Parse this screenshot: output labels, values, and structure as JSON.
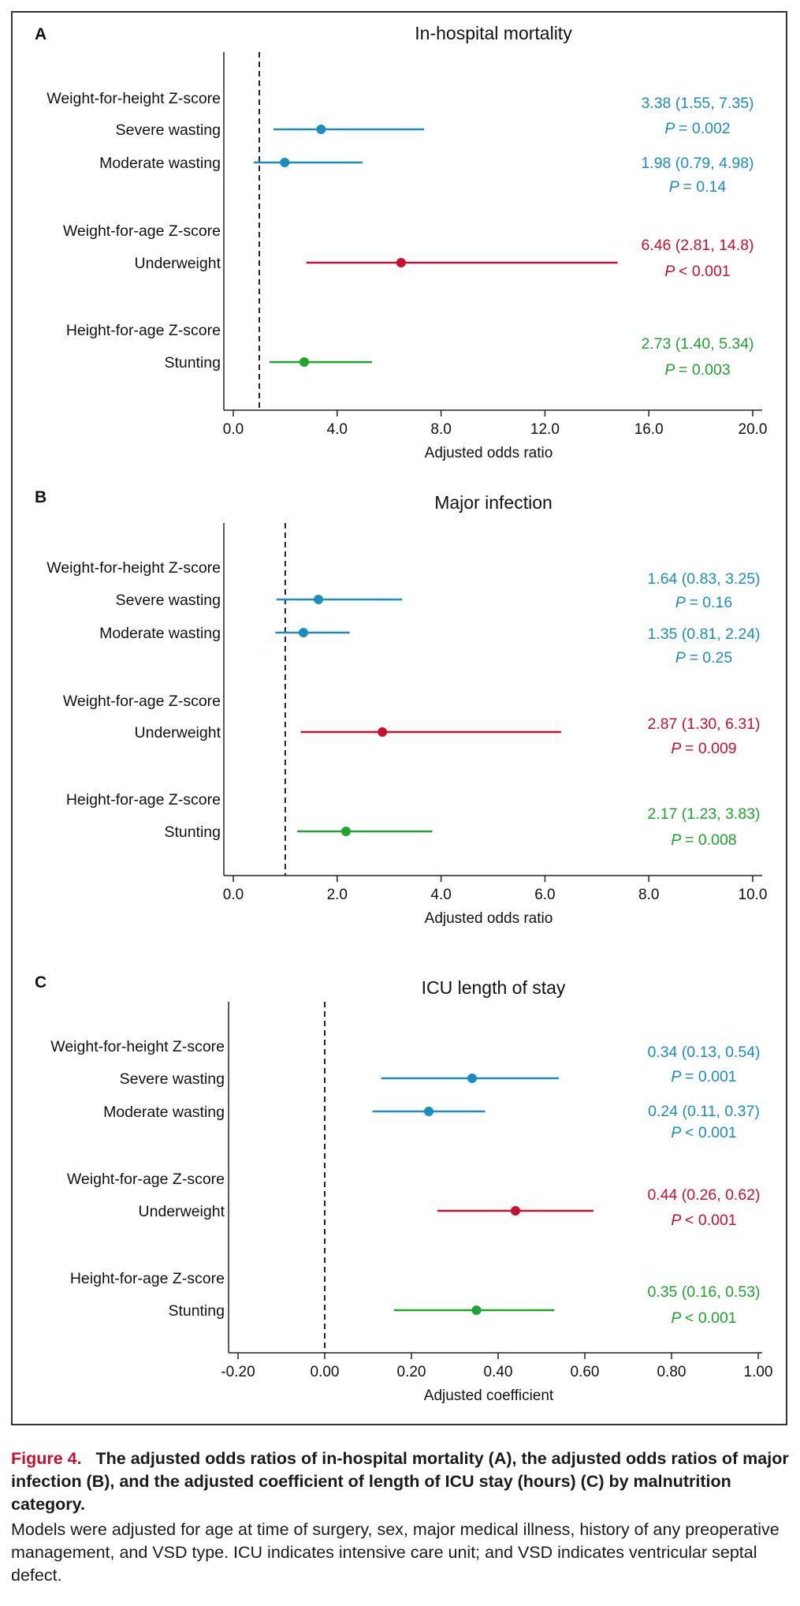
{
  "chart_data": [
    {
      "panel_label": "A",
      "type": "forest",
      "title": "In‑hospital mortality",
      "xlabel": "Adjusted odds ratio",
      "xlim": [
        0,
        20
      ],
      "xticks": [
        "0.0",
        "4.0",
        "8.0",
        "12.0",
        "16.0",
        "20.0"
      ],
      "xtick_values": [
        0,
        4,
        8,
        12,
        16,
        20
      ],
      "reference_line": 1,
      "groups": [
        {
          "header": "Weight‑for‑height Z‑score",
          "rows": [
            {
              "label": "Severe wasting",
              "estimate": 3.38,
              "ci_low": 1.55,
              "ci_high": 7.35,
              "color": "#1a8dbf",
              "est_text": "3.38 (1.55, 7.35)",
              "p_text": "= 0.002"
            },
            {
              "label": "Moderate wasting",
              "estimate": 1.98,
              "ci_low": 0.79,
              "ci_high": 4.98,
              "color": "#1a8dbf",
              "est_text": "1.98 (0.79, 4.98)",
              "p_text": "= 0.14"
            }
          ]
        },
        {
          "header": "Weight‑for‑age Z‑score",
          "rows": [
            {
              "label": "Underweight",
              "estimate": 6.46,
              "ci_low": 2.81,
              "ci_high": 14.8,
              "color": "#c8102e",
              "est_text": "6.46 (2.81, 14.8)",
              "p_text": "< 0.001"
            }
          ]
        },
        {
          "header": "Height‑for‑age Z‑score",
          "rows": [
            {
              "label": "Stunting",
              "estimate": 2.73,
              "ci_low": 1.4,
              "ci_high": 5.34,
              "color": "#1fa32c",
              "est_text": "2.73 (1.40, 5.34)",
              "p_text": "= 0.003"
            }
          ]
        }
      ]
    },
    {
      "panel_label": "B",
      "type": "forest",
      "title": "Major infection",
      "xlabel": "Adjusted odds ratio",
      "xlim": [
        0,
        10
      ],
      "xticks": [
        "0.0",
        "2.0",
        "4.0",
        "6.0",
        "8.0",
        "10.0"
      ],
      "xtick_values": [
        0,
        2,
        4,
        6,
        8,
        10
      ],
      "reference_line": 1,
      "groups": [
        {
          "header": "Weight‑for‑height Z‑score",
          "rows": [
            {
              "label": "Severe wasting",
              "estimate": 1.64,
              "ci_low": 0.83,
              "ci_high": 3.25,
              "color": "#1a8dbf",
              "est_text": "1.64 (0.83, 3.25)",
              "p_text": "= 0.16"
            },
            {
              "label": "Moderate wasting",
              "estimate": 1.35,
              "ci_low": 0.81,
              "ci_high": 2.24,
              "color": "#1a8dbf",
              "est_text": "1.35 (0.81, 2.24)",
              "p_text": "= 0.25"
            }
          ]
        },
        {
          "header": "Weight‑for‑age Z‑score",
          "rows": [
            {
              "label": "Underweight",
              "estimate": 2.87,
              "ci_low": 1.3,
              "ci_high": 6.31,
              "color": "#c8102e",
              "est_text": "2.87 (1.30, 6.31)",
              "p_text": "= 0.009"
            }
          ]
        },
        {
          "header": "Height‑for‑age Z‑score",
          "rows": [
            {
              "label": "Stunting",
              "estimate": 2.17,
              "ci_low": 1.23,
              "ci_high": 3.83,
              "color": "#1fa32c",
              "est_text": "2.17 (1.23, 3.83)",
              "p_text": "= 0.008"
            }
          ]
        }
      ]
    },
    {
      "panel_label": "C",
      "type": "forest",
      "title": "ICU length of stay",
      "xlabel": "Adjusted coefficient",
      "xlim": [
        -0.2,
        1.0
      ],
      "xticks": [
        "-0.20",
        "0.00",
        "0.20",
        "0.40",
        "0.60",
        "0.80",
        "1.00"
      ],
      "xtick_values": [
        -0.2,
        0,
        0.2,
        0.4,
        0.6,
        0.8,
        1.0
      ],
      "reference_line": 0,
      "groups": [
        {
          "header": "Weight‑for‑height Z‑score",
          "rows": [
            {
              "label": "Severe wasting",
              "estimate": 0.34,
              "ci_low": 0.13,
              "ci_high": 0.54,
              "color": "#1a8dbf",
              "est_text": "0.34 (0.13, 0.54)",
              "p_text": "= 0.001"
            },
            {
              "label": "Moderate wasting",
              "estimate": 0.24,
              "ci_low": 0.11,
              "ci_high": 0.37,
              "color": "#1a8dbf",
              "est_text": "0.24 (0.11, 0.37)",
              "p_text": "< 0.001"
            }
          ]
        },
        {
          "header": "Weight‑for‑age Z‑score",
          "rows": [
            {
              "label": "Underweight",
              "estimate": 0.44,
              "ci_low": 0.26,
              "ci_high": 0.62,
              "color": "#c8102e",
              "est_text": "0.44 (0.26, 0.62)",
              "p_text": "< 0.001"
            }
          ]
        },
        {
          "header": "Height‑for‑age Z‑score",
          "rows": [
            {
              "label": "Stunting",
              "estimate": 0.35,
              "ci_low": 0.16,
              "ci_high": 0.53,
              "color": "#1fa32c",
              "est_text": "0.35 (0.16, 0.53)",
              "p_text": "< 0.001"
            }
          ]
        }
      ]
    }
  ],
  "p_symbol": "P",
  "caption": {
    "figure_label": "Figure 4.",
    "title": "The adjusted odds ratios of in-hospital mortality (A), the adjusted odds ratios of major infection (B), and the adjusted coefficient of length of ICU stay (hours) (C) by malnutrition category.",
    "body": "Models were adjusted for age at time of surgery, sex, major medical illness, history of any preoperative management, and VSD type. ICU indicates intensive care unit; and VSD indicates ventricular septal defect."
  }
}
